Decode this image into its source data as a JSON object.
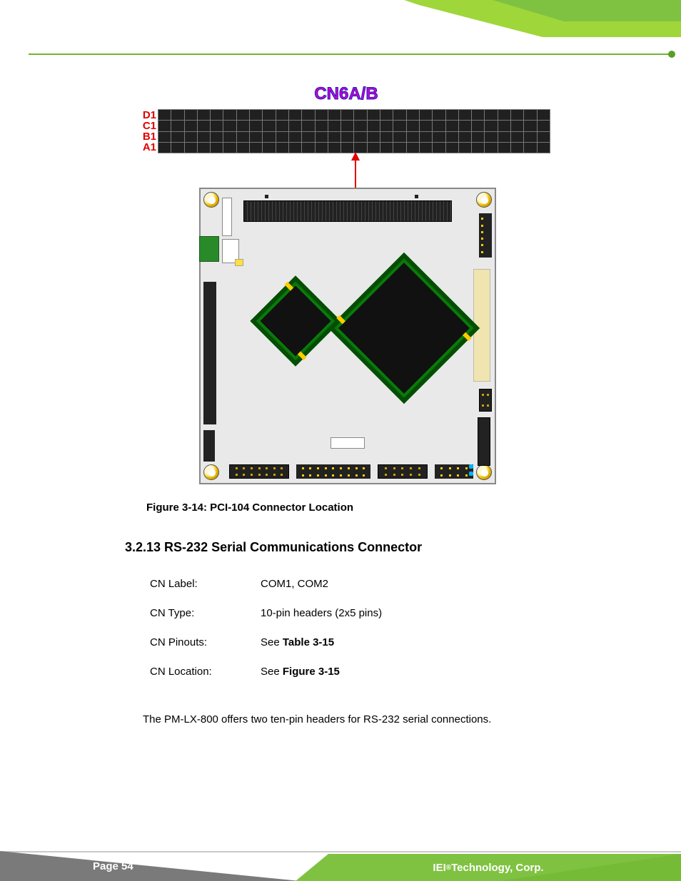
{
  "colors": {
    "green_light": "#9fd63a",
    "green_mid": "#7fc241",
    "green_dark": "#4f9b1e",
    "rule": "#6fb52f",
    "rule_dot": "#5c9e27",
    "cn_title": "#cc00cc",
    "cn_stroke": "#1a1ad0",
    "row_label": "#e00000",
    "footer_grey": "#7a7a7a"
  },
  "connector_diagram": {
    "title": "CN6A/B",
    "row_labels": [
      "D1",
      "C1",
      "B1",
      "A1"
    ],
    "cols": 30,
    "rows": 4
  },
  "figure_caption": "Figure 3-14: PCI-104 Connector Location",
  "section_heading": "3.2.13 RS-232 Serial Communications Connector",
  "kv": {
    "rows": [
      {
        "k": "CN Label:",
        "v_pre": "",
        "v_bold": "",
        "v_post": "COM1, COM2"
      },
      {
        "k": "CN Type:",
        "v_pre": "",
        "v_bold": "",
        "v_post": "10-pin headers (2x5 pins)"
      },
      {
        "k": "CN Pinouts:",
        "v_pre": "See ",
        "v_bold": "Table 3-15",
        "v_post": ""
      },
      {
        "k": "CN Location:",
        "v_pre": "See ",
        "v_bold": "Figure 3-15",
        "v_post": ""
      }
    ]
  },
  "body_text": "The PM-LX-800 offers two ten-pin headers for RS-232 serial connections.",
  "footer": {
    "page_label": "Page 54",
    "corp_pre": "IEI",
    "corp_sup": "®",
    "corp_post": " Technology, Corp."
  }
}
